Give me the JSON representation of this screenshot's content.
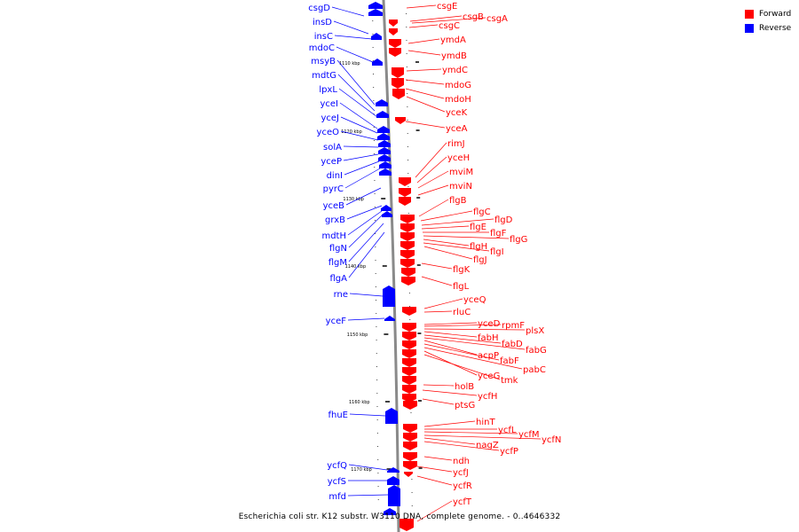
{
  "caption": "Escherichia coli str. K12 substr. W3110 DNA, complete genome. - 0..4646332",
  "legend": [
    {
      "label": "Forward",
      "color": "#ff0000"
    },
    {
      "label": "Reverse",
      "color": "#0000ff"
    }
  ],
  "colors": {
    "forward": "#ff0000",
    "reverse": "#0000ff",
    "backbone": "#8a8a8a"
  },
  "ticks": [
    "1110 kbp",
    "1120 kbp",
    "1130 kbp",
    "1140 kbp",
    "1150 kbp",
    "1160 kbp",
    "1170 kbp"
  ],
  "reverse_genes": [
    "csgD",
    "insD",
    "insC",
    "mdoC",
    "msyB",
    "mdtG",
    "lpxL",
    "yceI",
    "yceJ",
    "yceO",
    "solA",
    "yceP",
    "dinI",
    "pyrC",
    "yceB",
    "grxB",
    "mdtH",
    "flgN",
    "flgM",
    "flgA",
    "rne",
    "yceF",
    "fhuE",
    "ycfQ",
    "ycfS",
    "mfd"
  ],
  "forward_genes": [
    "csgE",
    "csgB",
    "csgA",
    "csgC",
    "ymdA",
    "ymdB",
    "ymdC",
    "mdoG",
    "mdoH",
    "yceK",
    "yceA",
    "rimJ",
    "yceH",
    "mviM",
    "mviN",
    "flgB",
    "flgC",
    "flgD",
    "flgE",
    "flgF",
    "flgG",
    "flgH",
    "flgI",
    "flgJ",
    "flgK",
    "flgL",
    "yceQ",
    "rluC",
    "yceD",
    "rpmF",
    "plsX",
    "fabH",
    "fabD",
    "fabG",
    "acpP",
    "fabF",
    "pabC",
    "yceG",
    "tmk",
    "holB",
    "ycfH",
    "ptsG",
    "hinT",
    "ycfL",
    "ycfM",
    "ycfN",
    "nagZ",
    "ycfP",
    "ndh",
    "ycfJ",
    "ycfR",
    "ycfT"
  ]
}
